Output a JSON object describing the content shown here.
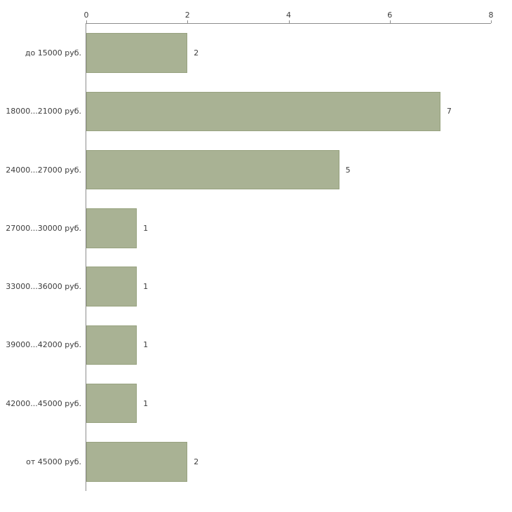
{
  "chart_data": {
    "type": "bar",
    "orientation": "horizontal",
    "title": "",
    "xlabel": "",
    "ylabel": "",
    "categories": [
      "до 15000 руб.",
      "18000...21000 руб.",
      "24000...27000 руб.",
      "27000...30000 руб.",
      "33000...36000 руб.",
      "39000...42000 руб.",
      "42000...45000 руб.",
      "от 45000 руб."
    ],
    "values": [
      2,
      7,
      5,
      1,
      1,
      1,
      1,
      2
    ],
    "value_labels": [
      "2",
      "7",
      "5",
      "1",
      "1",
      "1",
      "1",
      "2"
    ],
    "x_ticks": [
      "0",
      "2",
      "4",
      "6",
      "8"
    ],
    "xlim": [
      0,
      8
    ],
    "grid": false,
    "legend": "none",
    "axis_position": "top-left",
    "colors": {
      "bar_fill": "#a9b294",
      "bar_border": "#97a27f",
      "axis": "#8c8c8c",
      "text": "#3c3c3c",
      "background": "#ffffff"
    }
  }
}
